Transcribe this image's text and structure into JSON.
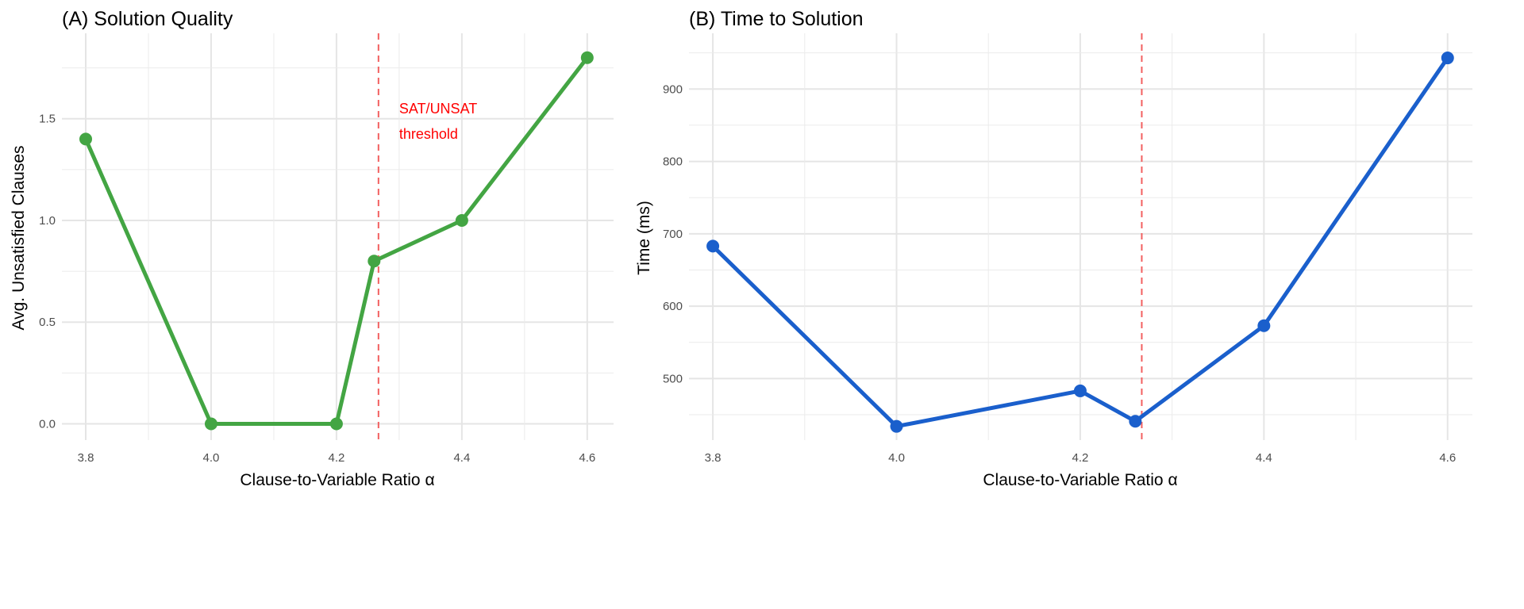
{
  "chart_data": [
    {
      "type": "line",
      "title": "(A) Solution Quality",
      "xlabel": "Clause-to-Variable Ratio α",
      "ylabel": "Avg. Unsatisfied Clauses",
      "x": [
        3.8,
        4.0,
        4.2,
        4.26,
        4.4,
        4.6
      ],
      "series": [
        {
          "values": [
            1.4,
            0.0,
            0.0,
            0.8,
            1.0,
            1.8
          ],
          "color": "#43a543"
        }
      ],
      "xlim": [
        3.762,
        4.642
      ],
      "ylim": [
        -0.08,
        1.92
      ],
      "xticks": [
        "3.8",
        "4.0",
        "4.2",
        "4.4",
        "4.6"
      ],
      "yticks": [
        "0.0",
        "0.5",
        "1.0",
        "1.5"
      ],
      "grid": true,
      "vline": {
        "x": 4.267,
        "color": "#f26060",
        "style": "dashed"
      },
      "annotation": {
        "lines": [
          "SAT/UNSAT",
          "threshold"
        ],
        "x": 4.3,
        "color": "#ff0000"
      }
    },
    {
      "type": "line",
      "title": "(B) Time to Solution",
      "xlabel": "Clause-to-Variable Ratio α",
      "ylabel": "Time (ms)",
      "x": [
        3.8,
        4.0,
        4.2,
        4.26,
        4.4,
        4.6
      ],
      "series": [
        {
          "values": [
            683,
            434,
            483,
            441,
            573,
            943
          ],
          "color": "#1a5fcc"
        }
      ],
      "xlim": [
        3.774,
        4.627
      ],
      "ylim": [
        415,
        977
      ],
      "xticks": [
        "3.8",
        "4.0",
        "4.2",
        "4.4",
        "4.6"
      ],
      "yticks": [
        "500",
        "600",
        "700",
        "800",
        "900"
      ],
      "grid": true,
      "vline": {
        "x": 4.267,
        "color": "#f26060",
        "style": "dashed"
      }
    }
  ]
}
